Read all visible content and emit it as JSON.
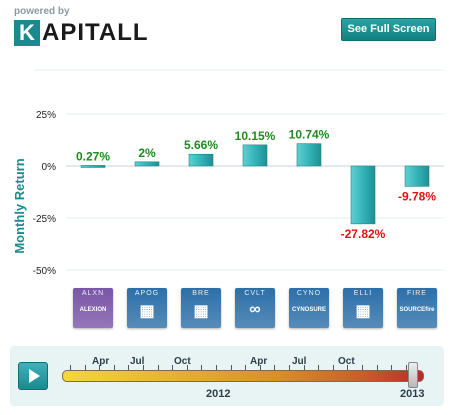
{
  "header": {
    "powered_by": "powered by",
    "logo_first": "K",
    "logo_rest": "APITALL",
    "fullscreen_label": "See Full Screen"
  },
  "colors": {
    "positive": "#1f8a1f",
    "negative": "#e01010",
    "bar": "#34b4b8",
    "accent": "#1b8a8e"
  },
  "chart_data": {
    "type": "bar",
    "categories": [
      "ALXN",
      "APOG",
      "BRE",
      "CVLT",
      "CYNO",
      "ELLI",
      "FIRE"
    ],
    "values": [
      0.27,
      2,
      5.66,
      10.15,
      10.74,
      -27.82,
      -9.78
    ],
    "value_labels": [
      "0.27%",
      "2%",
      "5.66%",
      "10.15%",
      "10.74%",
      "-27.82%",
      "-9.78%"
    ],
    "ylabel": "Monthly Return",
    "ylim": [
      -50,
      25
    ],
    "yticks": [
      25,
      0,
      -25,
      -50
    ],
    "ytick_labels": [
      "25%",
      "0%",
      "-25%",
      "-50%"
    ],
    "grid": true
  },
  "tickers": [
    {
      "symbol": "ALXN",
      "icon_name": "alexion-logo",
      "icon_text": "ALEXION",
      "color": "#7a55a8"
    },
    {
      "symbol": "APOG",
      "icon_name": "building-icon",
      "icon_text": "▦",
      "color": "#2c6fa8"
    },
    {
      "symbol": "BRE",
      "icon_name": "building-icon",
      "icon_text": "▦",
      "color": "#2c6fa8"
    },
    {
      "symbol": "CVLT",
      "icon_name": "commvault-logo",
      "icon_text": "∞",
      "color": "#2c6fa8"
    },
    {
      "symbol": "CYNO",
      "icon_name": "cynosure-logo",
      "icon_text": "CYNOSURE",
      "color": "#2c6fa8"
    },
    {
      "symbol": "ELLI",
      "icon_name": "building-icon",
      "icon_text": "▦",
      "color": "#2c6fa8"
    },
    {
      "symbol": "FIRE",
      "icon_name": "sourcefire-logo",
      "icon_text": "SOURCEfire",
      "color": "#2c6fa8"
    }
  ],
  "timeline": {
    "months": [
      "Apr",
      "Jul",
      "Oct",
      "Apr",
      "Jul",
      "Oct"
    ],
    "years": [
      "2012",
      "2013"
    ]
  }
}
